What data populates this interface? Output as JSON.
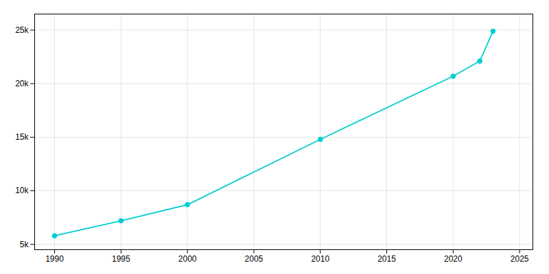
{
  "chart_data": {
    "type": "line",
    "x": [
      1990,
      1995,
      2000,
      2010,
      2020,
      2022,
      2023
    ],
    "values": [
      5800,
      7200,
      8700,
      14800,
      20700,
      22100,
      24900
    ],
    "color": "#00CED1",
    "marker": "circle",
    "xlim": [
      1988.5,
      2026
    ],
    "xticks": [
      1990,
      1995,
      2000,
      2005,
      2010,
      2015,
      2020,
      2025
    ],
    "ylim": [
      4500,
      26500
    ],
    "yticks": [
      {
        "value": 5000,
        "label": "5k"
      },
      {
        "value": 10000,
        "label": "10k"
      },
      {
        "value": 15000,
        "label": "15k"
      },
      {
        "value": 20000,
        "label": "20k"
      },
      {
        "value": 25000,
        "label": "25k"
      }
    ],
    "grid": true
  }
}
